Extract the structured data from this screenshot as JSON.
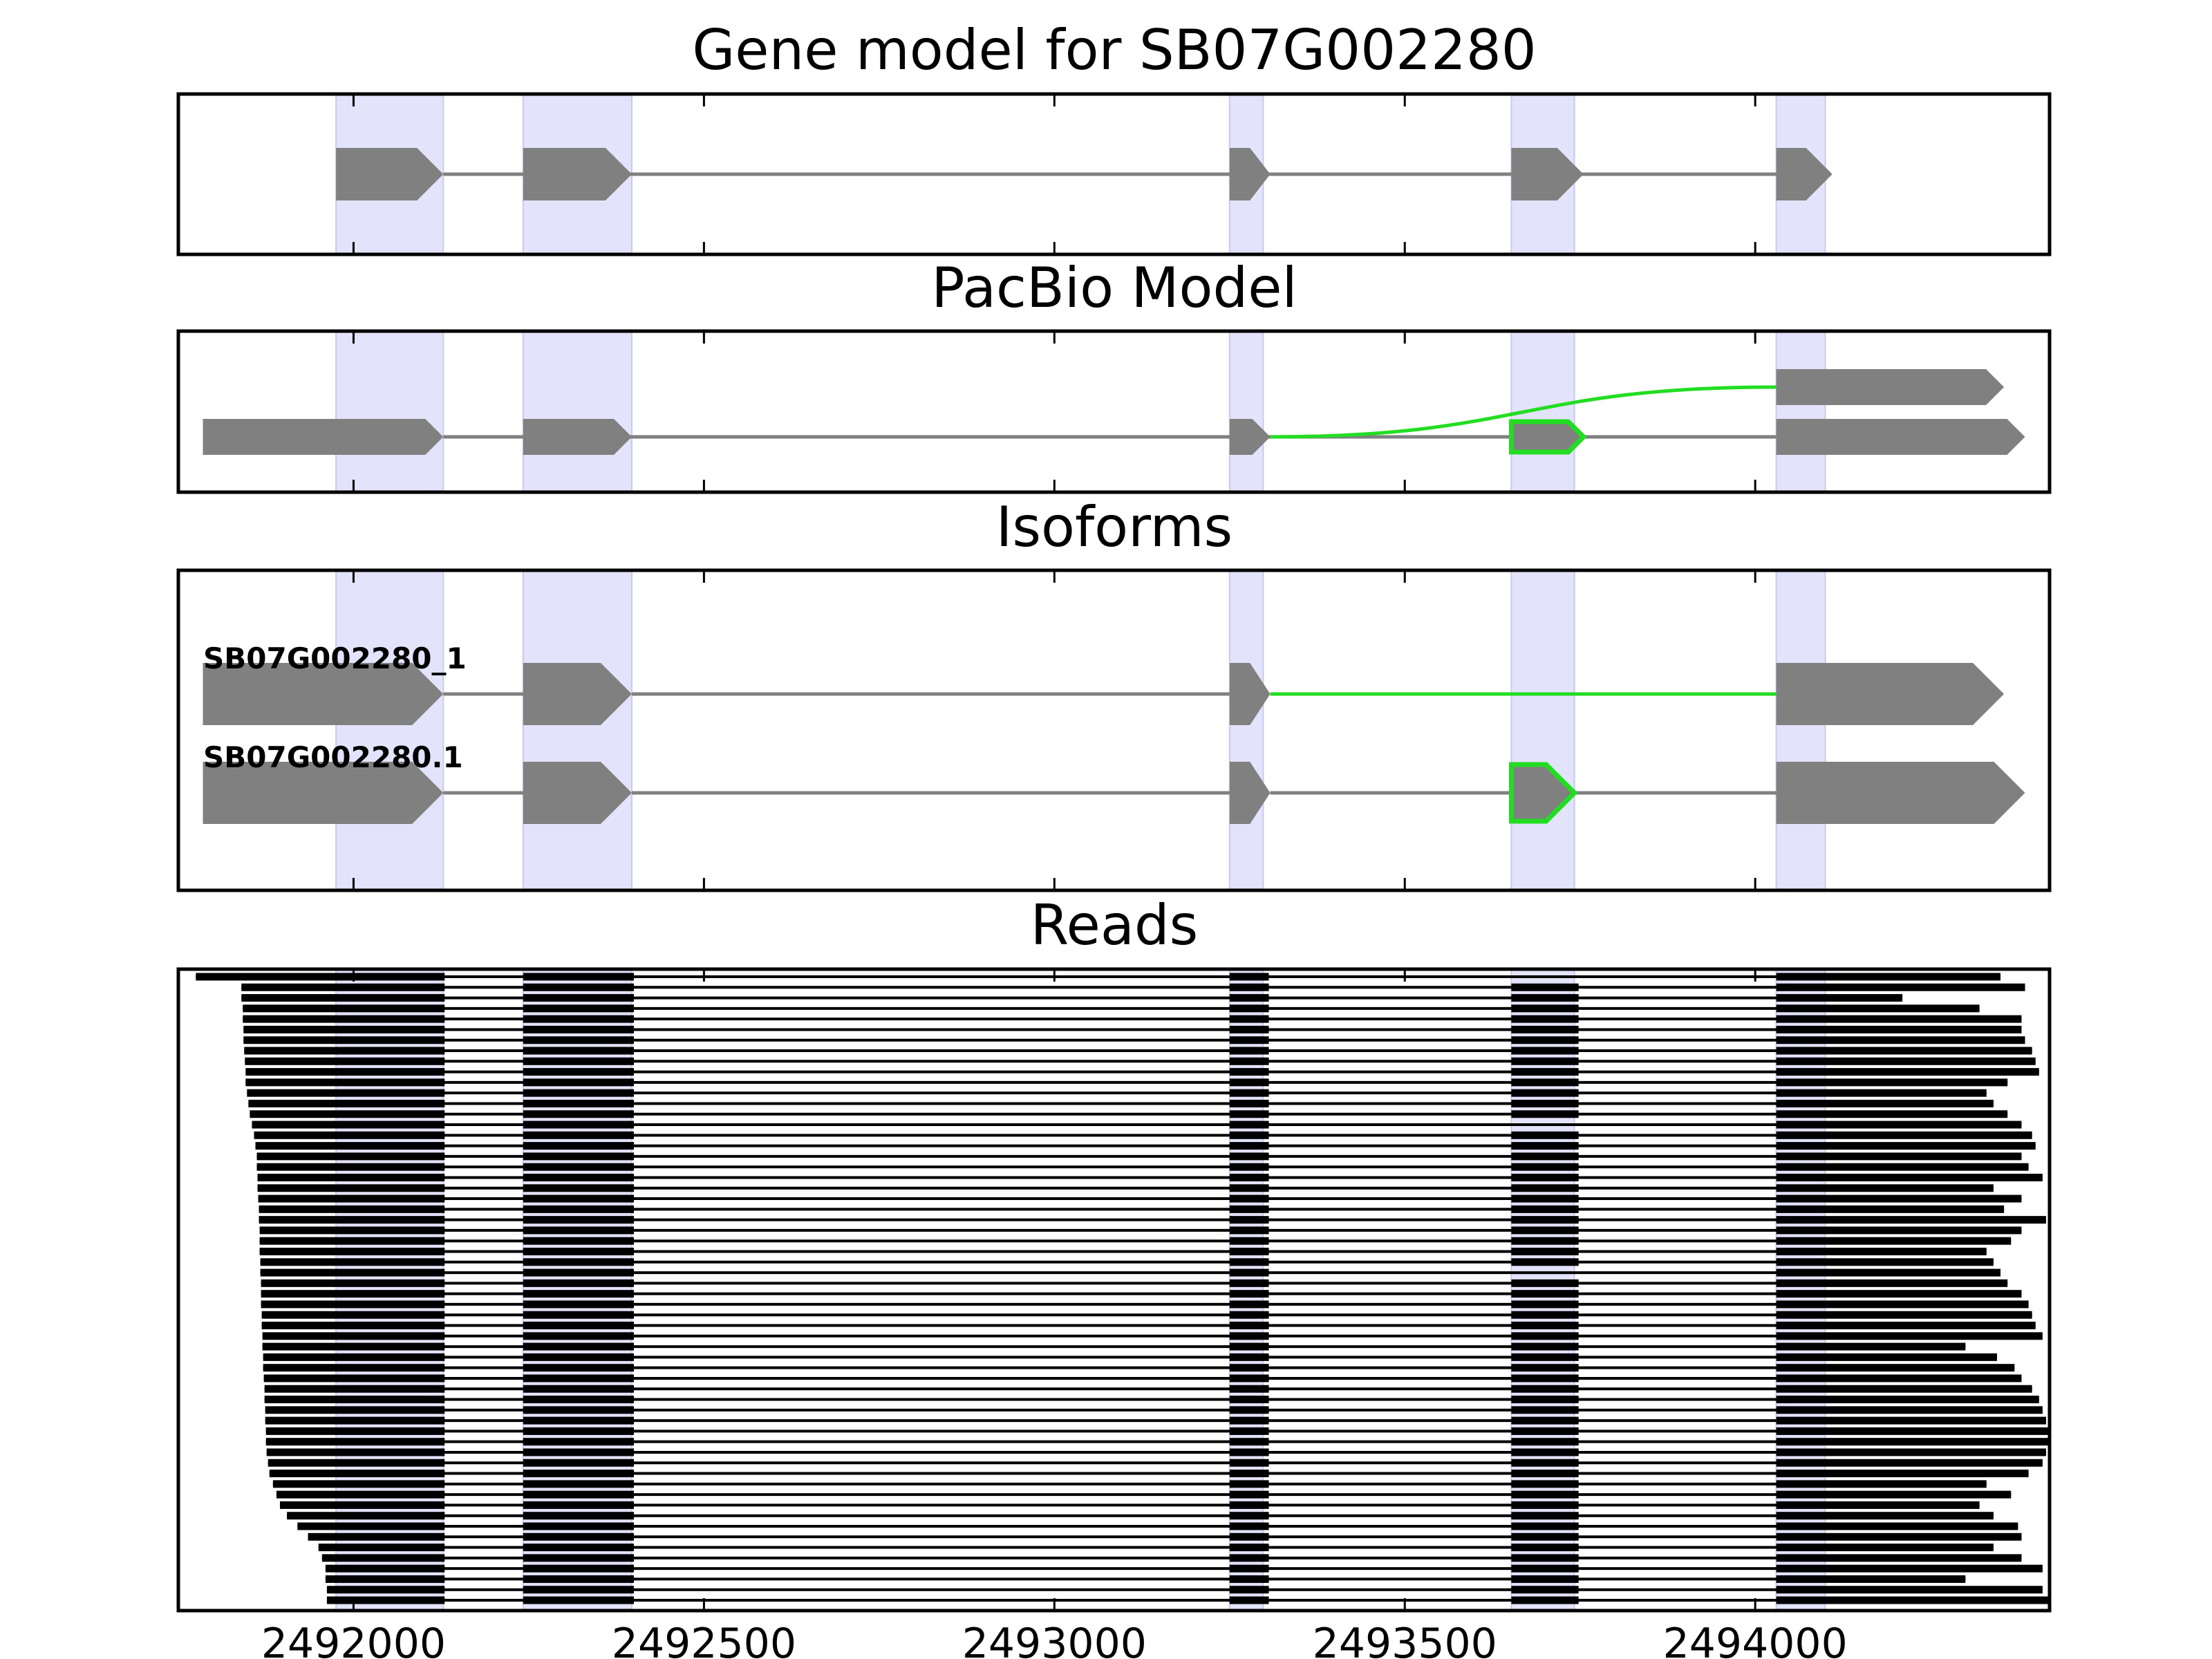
{
  "panels": {
    "gene_model": {
      "title": "Gene model for SB07G002280"
    },
    "pacbio": {
      "title": "PacBio Model"
    },
    "isoforms": {
      "title": "Isoforms",
      "labels": [
        "SB07G002280_1",
        "SB07G002280.1"
      ]
    },
    "reads": {
      "title": "Reads"
    }
  },
  "chart_data": {
    "type": "gene-structure",
    "xlim": [
      2491750,
      2494420
    ],
    "x_ticks": [
      2492000,
      2492500,
      2493000,
      2493500,
      2494000
    ],
    "x_tick_labels": [
      "2492000",
      "2492500",
      "2493000",
      "2493500",
      "2494000"
    ],
    "exon_regions": [
      [
        2491975,
        2492128
      ],
      [
        2492242,
        2492397
      ],
      [
        2493250,
        2493298
      ],
      [
        2493652,
        2493742
      ],
      [
        2494030,
        2494100
      ]
    ],
    "gene_model_exons": [
      [
        2491975,
        2492128
      ],
      [
        2492242,
        2492397
      ],
      [
        2493250,
        2493308
      ],
      [
        2493652,
        2493755
      ],
      [
        2494030,
        2494110
      ]
    ],
    "pacbio_models": [
      {
        "row": "upper",
        "exons": [
          [
            2494030,
            2494355
          ]
        ]
      },
      {
        "row": "lower",
        "exons": [
          [
            2491785,
            2492128
          ],
          [
            2492242,
            2492397
          ],
          [
            2493250,
            2493308
          ],
          [
            2493652,
            2493755
          ],
          [
            2494030,
            2494385
          ]
        ],
        "highlighted_exon_index": 3
      }
    ],
    "pacbio_skip_junction": [
      2493308,
      2494030
    ],
    "isoforms": [
      {
        "name": "SB07G002280_1",
        "exons": [
          [
            2491785,
            2492128
          ],
          [
            2492242,
            2492397
          ],
          [
            2493250,
            2493308
          ],
          [
            2494030,
            2494355
          ]
        ],
        "highlighted_intron": [
          2493308,
          2494030
        ]
      },
      {
        "name": "SB07G002280.1",
        "exons": [
          [
            2491785,
            2492128
          ],
          [
            2492242,
            2492397
          ],
          [
            2493250,
            2493308
          ],
          [
            2493652,
            2493742
          ],
          [
            2494030,
            2494385
          ]
        ],
        "highlighted_exon_index": 3
      }
    ],
    "reads": {
      "count": 60,
      "exon_blocks": [
        [
          2492242,
          2492400
        ],
        [
          2493250,
          2493306
        ],
        [
          2493652,
          2493748
        ]
      ],
      "first_exon_end": 2492130,
      "last_exon_start": 2494030,
      "skip_read_indices": [
        0,
        14,
        28
      ],
      "starts": [
        2491775,
        2491840,
        2491840,
        2491842,
        2491842,
        2491843,
        2491843,
        2491844,
        2491845,
        2491846,
        2491846,
        2491848,
        2491850,
        2491852,
        2491855,
        2491858,
        2491860,
        2491862,
        2491862,
        2491863,
        2491863,
        2491864,
        2491865,
        2491865,
        2491866,
        2491866,
        2491866,
        2491867,
        2491867,
        2491868,
        2491868,
        2491868,
        2491869,
        2491869,
        2491870,
        2491870,
        2491871,
        2491871,
        2491872,
        2491873,
        2491873,
        2491874,
        2491874,
        2491875,
        2491875,
        2491876,
        2491878,
        2491880,
        2491885,
        2491890,
        2491895,
        2491905,
        2491920,
        2491935,
        2491950,
        2491955,
        2491960,
        2491960,
        2491962,
        2491962
      ],
      "ends": [
        2494350,
        2494385,
        2494210,
        2494320,
        2494380,
        2494380,
        2494385,
        2494395,
        2494400,
        2494405,
        2494360,
        2494330,
        2494340,
        2494360,
        2494380,
        2494395,
        2494400,
        2494380,
        2494390,
        2494410,
        2494340,
        2494380,
        2494355,
        2494415,
        2494380,
        2494365,
        2494330,
        2494340,
        2494350,
        2494360,
        2494380,
        2494390,
        2494395,
        2494400,
        2494410,
        2494300,
        2494345,
        2494370,
        2494380,
        2494395,
        2494405,
        2494410,
        2494415,
        2494418,
        2494418,
        2494415,
        2494410,
        2494390,
        2494330,
        2494365,
        2494320,
        2494340,
        2494375,
        2494380,
        2494340,
        2494380,
        2494410,
        2494300,
        2494410,
        2494418
      ]
    }
  }
}
